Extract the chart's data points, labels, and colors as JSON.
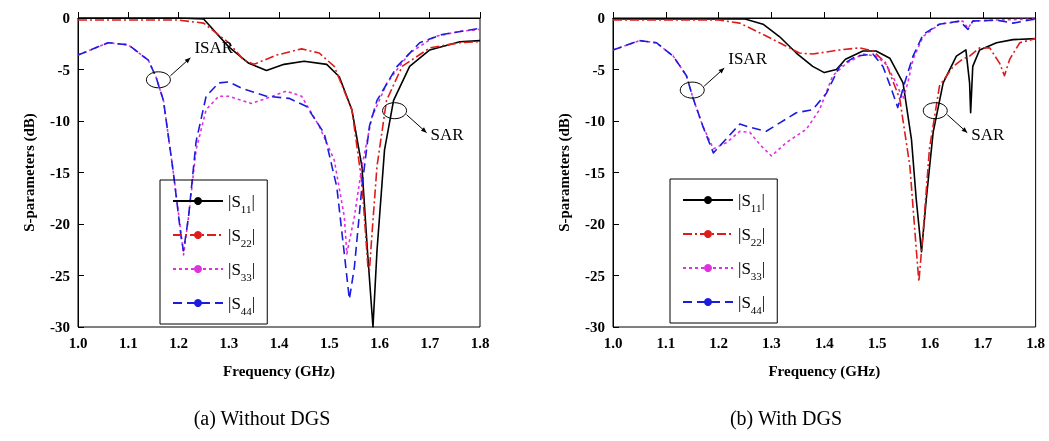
{
  "chart_data": [
    {
      "type": "line",
      "title": "(a) Without DGS",
      "xlabel": "Frequency (GHz)",
      "ylabel": "S-parameters (dB)",
      "xlim": [
        1.0,
        1.8
      ],
      "ylim": [
        -30,
        0
      ],
      "xticks": [
        {
          "value": 1.0,
          "label": "1.0"
        },
        1.1,
        1.2,
        1.3,
        1.4,
        1.5,
        1.6,
        1.7,
        1.8
      ],
      "yticks": [
        -30,
        -25,
        -20,
        -15,
        -10,
        -5,
        0
      ],
      "legend": "bottom",
      "grid": false,
      "marker": "none",
      "annotations": [
        {
          "text": "ISAR",
          "x": 1.16,
          "y": -6
        },
        {
          "text": "SAR",
          "x": 1.63,
          "y": -9
        }
      ],
      "series": [
        {
          "name": "|S$_{11}$|",
          "color": "#000000",
          "line_style": "solid",
          "x": [
            1.0,
            1.1,
            1.2,
            1.25,
            1.3,
            1.34,
            1.375,
            1.41,
            1.45,
            1.495,
            1.52,
            1.545,
            1.565,
            1.576,
            1.587,
            1.595,
            1.61,
            1.628,
            1.66,
            1.7,
            1.76,
            1.8
          ],
          "values": [
            0,
            0,
            0,
            -0.1,
            -2.8,
            -4.4,
            -5.1,
            -4.5,
            -4.2,
            -4.5,
            -5.7,
            -8.9,
            -14.4,
            -22.6,
            -30,
            -22.6,
            -12.8,
            -8,
            -4.7,
            -3.1,
            -2.3,
            -2.2
          ]
        },
        {
          "name": "|S$_{22}$|",
          "color": "#dd1c1c",
          "line_style": "dashdot",
          "x": [
            1.0,
            1.1,
            1.2,
            1.25,
            1.3,
            1.33,
            1.35,
            1.395,
            1.445,
            1.48,
            1.51,
            1.545,
            1.565,
            1.577,
            1.58,
            1.585,
            1.595,
            1.614,
            1.645,
            1.7,
            1.76,
            1.8
          ],
          "values": [
            -0.2,
            -0.2,
            -0.2,
            -0.5,
            -2.4,
            -4.1,
            -4.5,
            -3.6,
            -3.0,
            -3.4,
            -4.7,
            -8.9,
            -16,
            -24.2,
            -24.5,
            -21,
            -14.4,
            -8,
            -4.7,
            -2.9,
            -2.4,
            -2.3
          ]
        },
        {
          "name": "|S$_{33}$|",
          "color": "#e030e0",
          "line_style": "dotted",
          "x": [
            1.0,
            1.06,
            1.1,
            1.14,
            1.155,
            1.17,
            1.19,
            1.205,
            1.21,
            1.22,
            1.235,
            1.255,
            1.28,
            1.3,
            1.345,
            1.375,
            1.415,
            1.445,
            1.48,
            1.51,
            1.53,
            1.535,
            1.55,
            1.565,
            1.585,
            1.615,
            1.66,
            1.71,
            1.76,
            1.8
          ],
          "values": [
            -3.6,
            -2.4,
            -2.6,
            -4.1,
            -5.7,
            -8,
            -15.1,
            -20.9,
            -23,
            -19.3,
            -12.8,
            -8.9,
            -7.6,
            -7.6,
            -8.3,
            -7.8,
            -7.1,
            -7.6,
            -10.5,
            -13.8,
            -19.3,
            -22.9,
            -19.3,
            -14.4,
            -9.6,
            -6.3,
            -3.4,
            -1.8,
            -1.3,
            -1.1
          ]
        },
        {
          "name": "|S$_{44}$|",
          "color": "#1c1cdd",
          "line_style": "dashed",
          "x": [
            1.0,
            1.06,
            1.1,
            1.14,
            1.155,
            1.17,
            1.19,
            1.205,
            1.21,
            1.22,
            1.235,
            1.255,
            1.28,
            1.3,
            1.325,
            1.375,
            1.42,
            1.455,
            1.49,
            1.515,
            1.53,
            1.54,
            1.55,
            1.565,
            1.58,
            1.595,
            1.635,
            1.68,
            1.725,
            1.8
          ],
          "values": [
            -3.6,
            -2.4,
            -2.6,
            -4.1,
            -5.7,
            -8,
            -15.1,
            -21.2,
            -22.6,
            -19.3,
            -12,
            -7.6,
            -6.3,
            -6.2,
            -6.8,
            -7.6,
            -7.8,
            -8.6,
            -11.2,
            -16.4,
            -22.9,
            -27.3,
            -24.2,
            -16.4,
            -10.5,
            -8,
            -4.7,
            -2.4,
            -1.6,
            -1.0
          ]
        }
      ]
    },
    {
      "type": "line",
      "title": "(b) With DGS",
      "xlabel": "Frequency (GHz)",
      "ylabel": "S-parameters (dB)",
      "xlim": [
        1.0,
        1.8
      ],
      "ylim": [
        -30,
        0
      ],
      "xticks": [
        {
          "value": 1.0,
          "label": "1.0"
        },
        1.1,
        1.2,
        1.3,
        1.4,
        1.5,
        1.6,
        1.7,
        1.8
      ],
      "yticks": [
        -30,
        -25,
        -20,
        -15,
        -10,
        -5,
        0
      ],
      "legend": "bottom",
      "grid": false,
      "marker": "none",
      "annotations": [
        {
          "text": "ISAR",
          "x": 1.15,
          "y": -7
        },
        {
          "text": "SAR",
          "x": 1.61,
          "y": -9
        }
      ],
      "series": [
        {
          "name": "|S$_{11}$|",
          "color": "#000000",
          "line_style": "solid",
          "x": [
            1.0,
            1.2,
            1.25,
            1.284,
            1.315,
            1.347,
            1.378,
            1.4,
            1.423,
            1.44,
            1.473,
            1.498,
            1.524,
            1.549,
            1.565,
            1.574,
            1.584,
            1.593,
            1.606,
            1.625,
            1.65,
            1.668,
            1.675,
            1.677,
            1.681,
            1.694,
            1.726,
            1.757,
            1.8
          ],
          "values": [
            -0.1,
            -0.1,
            -0.1,
            -0.6,
            -1.8,
            -3.4,
            -4.7,
            -5.3,
            -5.0,
            -4.0,
            -3.2,
            -3.2,
            -3.9,
            -6.3,
            -11.8,
            -17.6,
            -22.7,
            -17.6,
            -11.1,
            -6.3,
            -3.7,
            -3.1,
            -6.3,
            -9.2,
            -4.7,
            -3.1,
            -2.4,
            -2.1,
            -2.0
          ]
        },
        {
          "name": "|S$_{22}$|",
          "color": "#dd1c1c",
          "line_style": "dashdot",
          "x": [
            1.0,
            1.2,
            1.24,
            1.284,
            1.315,
            1.353,
            1.378,
            1.429,
            1.467,
            1.492,
            1.517,
            1.543,
            1.562,
            1.574,
            1.579,
            1.587,
            1.599,
            1.618,
            1.644,
            1.662,
            1.675,
            1.694,
            1.713,
            1.732,
            1.741,
            1.751,
            1.77,
            1.8
          ],
          "values": [
            -0.2,
            -0.2,
            -0.5,
            -1.6,
            -2.4,
            -3.4,
            -3.5,
            -3.1,
            -2.9,
            -3.2,
            -4.4,
            -7.9,
            -14.4,
            -22.4,
            -25.6,
            -20.8,
            -12.7,
            -6.6,
            -4.7,
            -4.0,
            -3.7,
            -2.9,
            -2.9,
            -4.4,
            -5.6,
            -4.0,
            -2.4,
            -2.0
          ]
        },
        {
          "name": "|S$_{33}$|",
          "color": "#e030e0",
          "line_style": "dotted",
          "x": [
            1.0,
            1.05,
            1.082,
            1.114,
            1.139,
            1.151,
            1.17,
            1.19,
            1.215,
            1.24,
            1.259,
            1.28,
            1.3,
            1.328,
            1.366,
            1.391,
            1.416,
            1.442,
            1.473,
            1.498,
            1.517,
            1.536,
            1.549,
            1.558,
            1.568,
            1.587,
            1.618,
            1.662,
            1.672,
            1.681,
            1.726,
            1.8
          ],
          "values": [
            -3.1,
            -2.2,
            -2.4,
            -3.7,
            -5.6,
            -7.7,
            -10.5,
            -12.7,
            -12.1,
            -11.0,
            -11.1,
            -12.4,
            -13.4,
            -12.1,
            -10.8,
            -8.9,
            -5.6,
            -4.4,
            -3.5,
            -3.7,
            -4.5,
            -6.3,
            -7.9,
            -6.3,
            -4.0,
            -1.8,
            -0.6,
            -0.3,
            -1.0,
            -0.3,
            -0.2,
            -0.1
          ]
        },
        {
          "name": "|S$_{44}$|",
          "color": "#1c1cdd",
          "line_style": "dashed",
          "x": [
            1.0,
            1.05,
            1.082,
            1.114,
            1.139,
            1.151,
            1.17,
            1.19,
            1.24,
            1.259,
            1.29,
            1.315,
            1.347,
            1.378,
            1.404,
            1.429,
            1.46,
            1.492,
            1.511,
            1.527,
            1.539,
            1.552,
            1.568,
            1.587,
            1.618,
            1.656,
            1.672,
            1.681,
            1.726,
            1.757,
            1.8
          ],
          "values": [
            -3.1,
            -2.2,
            -2.4,
            -3.7,
            -5.6,
            -7.7,
            -10.5,
            -13.1,
            -10.3,
            -10.6,
            -11.0,
            -10.2,
            -9.2,
            -8.9,
            -7.3,
            -4.7,
            -3.7,
            -3.5,
            -4.7,
            -6.9,
            -8.7,
            -6.3,
            -3.7,
            -1.6,
            -0.6,
            -0.3,
            -1.1,
            -0.3,
            -0.2,
            -0.5,
            -0.1
          ]
        }
      ]
    }
  ]
}
